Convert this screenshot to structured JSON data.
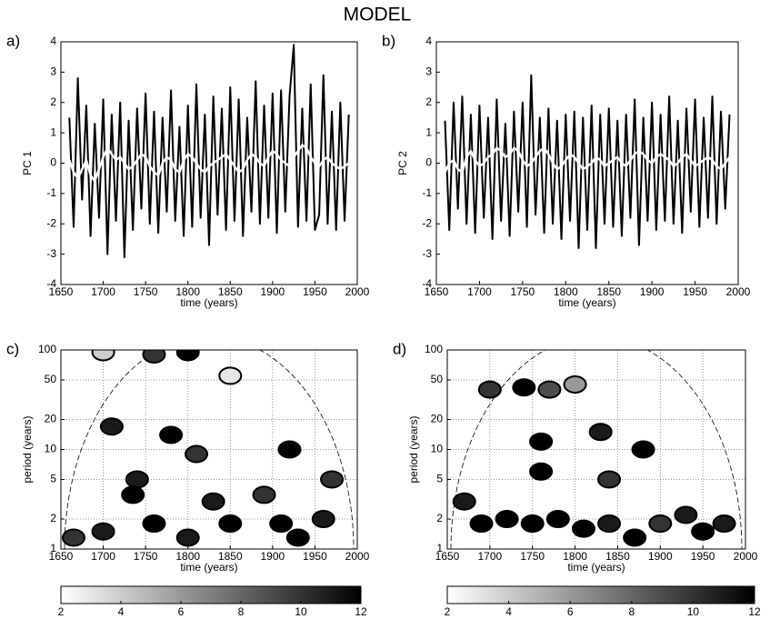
{
  "title": "MODEL",
  "chart_data": [
    {
      "type": "line",
      "panel_label": "a)",
      "xlabel": "time (years)",
      "ylabel": "PC 1",
      "x": [
        1660,
        1665,
        1670,
        1675,
        1680,
        1685,
        1690,
        1695,
        1700,
        1705,
        1710,
        1715,
        1720,
        1725,
        1730,
        1735,
        1740,
        1745,
        1750,
        1755,
        1760,
        1765,
        1770,
        1775,
        1780,
        1785,
        1790,
        1795,
        1800,
        1805,
        1810,
        1815,
        1820,
        1825,
        1830,
        1835,
        1840,
        1845,
        1850,
        1855,
        1860,
        1865,
        1870,
        1875,
        1880,
        1885,
        1890,
        1895,
        1900,
        1905,
        1910,
        1915,
        1920,
        1925,
        1930,
        1935,
        1940,
        1945,
        1950,
        1955,
        1960,
        1965,
        1970,
        1975,
        1980,
        1985,
        1990
      ],
      "series": [
        {
          "color": "#000000",
          "values": [
            1.5,
            -2.1,
            2.8,
            -1.2,
            1.9,
            -2.4,
            1.3,
            -1.8,
            2.1,
            -3.0,
            1.6,
            -1.9,
            2.0,
            -3.1,
            1.4,
            -2.2,
            1.8,
            -1.5,
            2.3,
            -2.0,
            1.7,
            -2.3,
            1.5,
            -1.6,
            2.4,
            -1.9,
            1.2,
            -2.4,
            1.9,
            -2.1,
            2.6,
            -1.8,
            1.6,
            -2.7,
            2.2,
            -1.7,
            1.8,
            -2.2,
            2.5,
            -1.9,
            2.1,
            -2.4,
            1.5,
            -1.6,
            2.7,
            -2.0,
            1.9,
            -1.8,
            2.3,
            -2.3,
            2.4,
            -1.6,
            2.2,
            3.9,
            -2.1,
            1.8,
            -1.9,
            2.6,
            -2.2,
            -1.7,
            2.9,
            -2.0,
            1.7,
            -2.2,
            2.0,
            -1.9,
            1.6
          ]
        },
        {
          "color": "#ffffff",
          "values": [
            0.1,
            -0.3,
            -0.5,
            -0.2,
            0.1,
            -0.4,
            -0.6,
            -0.2,
            0.2,
            0.5,
            0.3,
            0.1,
            0.2,
            0.0,
            -0.2,
            -0.1,
            0.1,
            0.3,
            0.2,
            -0.1,
            -0.3,
            -0.4,
            0.0,
            0.2,
            0.1,
            -0.2,
            -0.3,
            0.1,
            0.3,
            0.2,
            0.0,
            -0.2,
            -0.3,
            -0.1,
            0.0,
            0.1,
            0.2,
            0.3,
            0.1,
            -0.1,
            -0.3,
            -0.2,
            0.1,
            0.3,
            0.2,
            0.0,
            -0.1,
            0.2,
            0.4,
            0.3,
            0.1,
            0.0,
            -0.1,
            0.2,
            0.4,
            0.6,
            0.5,
            0.2,
            0.0,
            -0.1,
            0.1,
            0.2,
            0.0,
            -0.1,
            -0.2,
            -0.1,
            0.0
          ]
        }
      ],
      "xlim": [
        1650,
        2000
      ],
      "xticks": [
        1650,
        1700,
        1750,
        1800,
        1850,
        1900,
        1950,
        2000
      ],
      "ylim": [
        -4,
        4
      ],
      "yticks": [
        -4,
        -3,
        -2,
        -1,
        0,
        1,
        2,
        3,
        4
      ]
    },
    {
      "type": "line",
      "panel_label": "b)",
      "xlabel": "time (years)",
      "ylabel": "PC 2",
      "x": [
        1660,
        1665,
        1670,
        1675,
        1680,
        1685,
        1690,
        1695,
        1700,
        1705,
        1710,
        1715,
        1720,
        1725,
        1730,
        1735,
        1740,
        1745,
        1750,
        1755,
        1760,
        1765,
        1770,
        1775,
        1780,
        1785,
        1790,
        1795,
        1800,
        1805,
        1810,
        1815,
        1820,
        1825,
        1830,
        1835,
        1840,
        1845,
        1850,
        1855,
        1860,
        1865,
        1870,
        1875,
        1880,
        1885,
        1890,
        1895,
        1900,
        1905,
        1910,
        1915,
        1920,
        1925,
        1930,
        1935,
        1940,
        1945,
        1950,
        1955,
        1960,
        1965,
        1970,
        1975,
        1980,
        1985,
        1990
      ],
      "series": [
        {
          "color": "#000000",
          "values": [
            1.4,
            -2.2,
            2.0,
            -1.5,
            2.2,
            -2.0,
            1.6,
            -2.3,
            1.9,
            -1.8,
            1.5,
            -2.5,
            2.1,
            -1.9,
            1.3,
            -2.4,
            1.7,
            -1.6,
            2.0,
            -2.1,
            2.9,
            -1.7,
            1.5,
            -2.3,
            1.8,
            -2.0,
            1.4,
            -2.5,
            1.6,
            -1.9,
            1.7,
            -2.8,
            1.5,
            -2.2,
            1.9,
            -2.8,
            1.6,
            -2.0,
            1.8,
            -2.1,
            1.4,
            -2.4,
            1.6,
            -1.8,
            2.1,
            -2.7,
            1.5,
            -1.9,
            2.0,
            -2.2,
            1.6,
            -1.9,
            2.2,
            -2.0,
            1.4,
            -2.3,
            1.8,
            -1.6,
            2.1,
            -2.1,
            1.5,
            -1.8,
            2.2,
            -2.0,
            1.7,
            -1.5,
            1.6
          ]
        },
        {
          "color": "#ffffff",
          "values": [
            -0.3,
            0.0,
            0.1,
            -0.2,
            -0.3,
            0.2,
            0.4,
            0.1,
            -0.1,
            0.0,
            0.2,
            0.3,
            0.5,
            0.4,
            0.2,
            0.3,
            0.5,
            0.4,
            0.1,
            -0.1,
            0.0,
            0.2,
            0.4,
            0.5,
            0.3,
            0.0,
            -0.2,
            -0.1,
            0.1,
            0.3,
            0.2,
            0.0,
            -0.2,
            -0.1,
            0.0,
            0.2,
            0.1,
            -0.1,
            0.0,
            0.1,
            0.2,
            0.0,
            -0.1,
            0.1,
            0.3,
            0.4,
            0.3,
            0.1,
            0.0,
            0.2,
            0.3,
            0.2,
            0.1,
            -0.1,
            0.0,
            0.2,
            0.3,
            0.1,
            -0.1,
            0.0,
            0.1,
            0.2,
            0.1,
            -0.1,
            -0.2,
            0.0,
            0.2
          ]
        }
      ],
      "xlim": [
        1650,
        2000
      ],
      "xticks": [
        1650,
        1700,
        1750,
        1800,
        1850,
        1900,
        1950,
        2000
      ],
      "ylim": [
        -4,
        4
      ],
      "yticks": [
        -4,
        -3,
        -2,
        -1,
        0,
        1,
        2,
        3,
        4
      ]
    },
    {
      "type": "wavelet",
      "panel_label": "c)",
      "xlabel": "time (years)",
      "ylabel": "period (years)",
      "x": [
        1700,
        1760,
        1800,
        1850,
        1710,
        1780,
        1810,
        1920,
        1740,
        1735,
        1665,
        1700,
        1760,
        1800,
        1850,
        1890,
        1910,
        1960,
        1970,
        1930,
        1830
      ],
      "y": [
        95,
        90,
        95,
        55,
        17,
        14,
        9,
        10,
        5,
        3.5,
        1.3,
        1.5,
        1.8,
        1.3,
        1.8,
        3.5,
        1.8,
        2,
        5,
        1.3,
        3
      ],
      "values": [
        4,
        10,
        12,
        3,
        11,
        12,
        10,
        12,
        11,
        12,
        10,
        11,
        12,
        11,
        12,
        10,
        12,
        11,
        10,
        12,
        11
      ],
      "xlim": [
        1650,
        2000
      ],
      "xticks": [
        1650,
        1700,
        1750,
        1800,
        1850,
        1900,
        1950,
        2000
      ],
      "ylim": [
        1,
        100
      ],
      "yticks": [
        1,
        2,
        5,
        10,
        20,
        50,
        100
      ],
      "log_y": true,
      "grid": true,
      "colormap": [
        "#ffffff",
        "#000000"
      ],
      "colorbar": {
        "lim": [
          2,
          12
        ],
        "ticks": [
          2,
          4,
          6,
          8,
          10,
          12
        ]
      }
    },
    {
      "type": "wavelet",
      "panel_label": "d)",
      "xlabel": "time (years)",
      "ylabel": "period (years)",
      "x": [
        1740,
        1770,
        1800,
        1700,
        1830,
        1760,
        1880,
        1760,
        1840,
        1670,
        1690,
        1720,
        1750,
        1780,
        1810,
        1840,
        1870,
        1900,
        1930,
        1950,
        1975
      ],
      "y": [
        42,
        40,
        45,
        40,
        15,
        12,
        10,
        6,
        5,
        3,
        1.8,
        2,
        1.8,
        2,
        1.6,
        1.8,
        1.3,
        1.8,
        2.2,
        1.5,
        1.8
      ],
      "values": [
        12,
        9,
        6,
        10,
        11,
        12,
        12,
        12,
        10,
        11,
        12,
        12,
        12,
        12,
        12,
        11,
        12,
        10,
        11,
        12,
        11
      ],
      "xlim": [
        1650,
        2000
      ],
      "xticks": [
        1650,
        1700,
        1750,
        1800,
        1850,
        1900,
        1950,
        2000
      ],
      "ylim": [
        1,
        100
      ],
      "yticks": [
        1,
        2,
        5,
        10,
        20,
        50,
        100
      ],
      "log_y": true,
      "grid": true,
      "colormap": [
        "#ffffff",
        "#000000"
      ],
      "colorbar": {
        "lim": [
          2,
          12
        ],
        "ticks": [
          2,
          4,
          6,
          8,
          10,
          12
        ]
      }
    }
  ]
}
